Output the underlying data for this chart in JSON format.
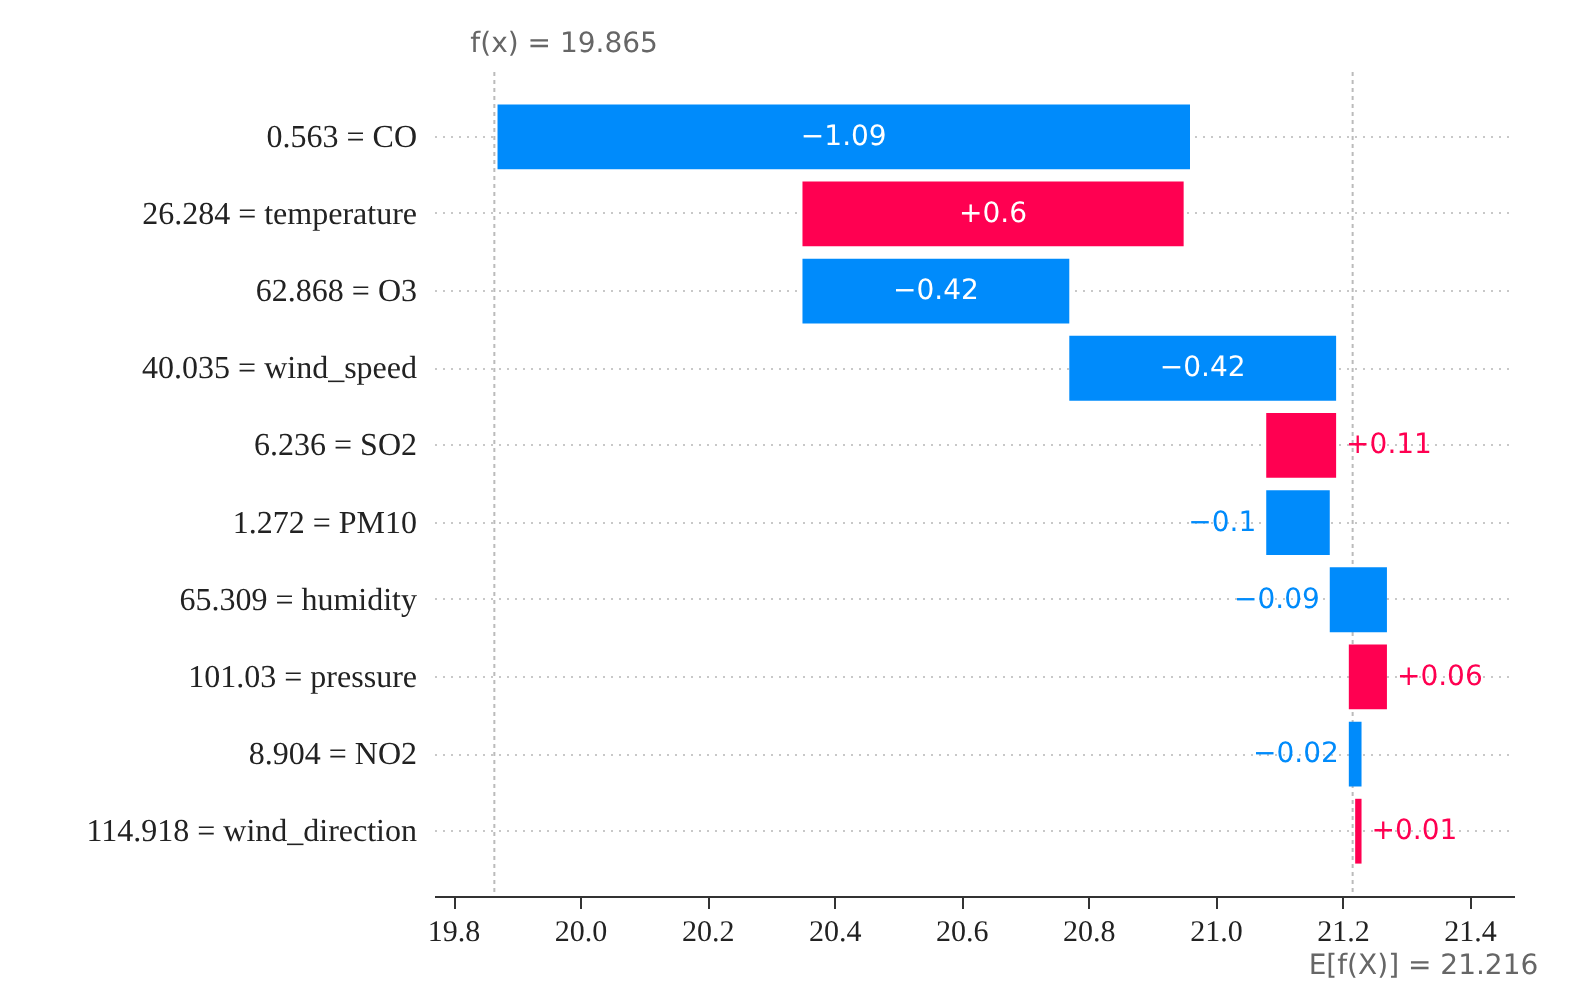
{
  "chart_data": {
    "type": "bar",
    "orientation": "horizontal",
    "categories": [
      "0.563 = CO",
      "26.284 = temperature",
      "62.868 = O3",
      "40.035 = wind_speed",
      "6.236 = SO2",
      "1.272 = PM10",
      "65.309 = humidity",
      "101.03 = pressure",
      "8.904 = NO2",
      "114.918 = wind_direction"
    ],
    "values": [
      -1.09,
      0.6,
      -0.42,
      -0.42,
      0.11,
      -0.1,
      -0.09,
      0.06,
      -0.02,
      0.01
    ],
    "base": [
      20.96,
      20.35,
      20.77,
      21.19,
      21.08,
      21.18,
      21.27,
      21.21,
      21.23,
      21.22
    ],
    "colors": [
      "#008bfb",
      "#ff0051",
      "#008bfb",
      "#008bfb",
      "#ff0051",
      "#008bfb",
      "#008bfb",
      "#ff0051",
      "#008bfb",
      "#ff0051"
    ],
    "value_labels": [
      "−1.09",
      "+0.6",
      "−0.42",
      "−0.42",
      "+0.11",
      "−0.1",
      "−0.09",
      "+0.06",
      "−0.02",
      "+0.01"
    ],
    "xlim": [
      19.77,
      21.47
    ],
    "xticks": [
      19.8,
      {
        "value": 20,
        "label": "20.0"
      },
      20.2,
      20.4,
      20.6,
      20.8,
      {
        "value": 21,
        "label": "21.0"
      },
      21.2,
      21.4
    ],
    "ref_lines": [
      {
        "axis": "x",
        "value": 19.865,
        "label": "f(x) = 19.865",
        "color": "#bbbbbb",
        "line_style": "dotted"
      },
      {
        "axis": "x",
        "value": 21.216,
        "label": "E[f(X)] = 21.216",
        "color": "#bbbbbb",
        "line_style": "dotted"
      }
    ],
    "grid": "y"
  }
}
